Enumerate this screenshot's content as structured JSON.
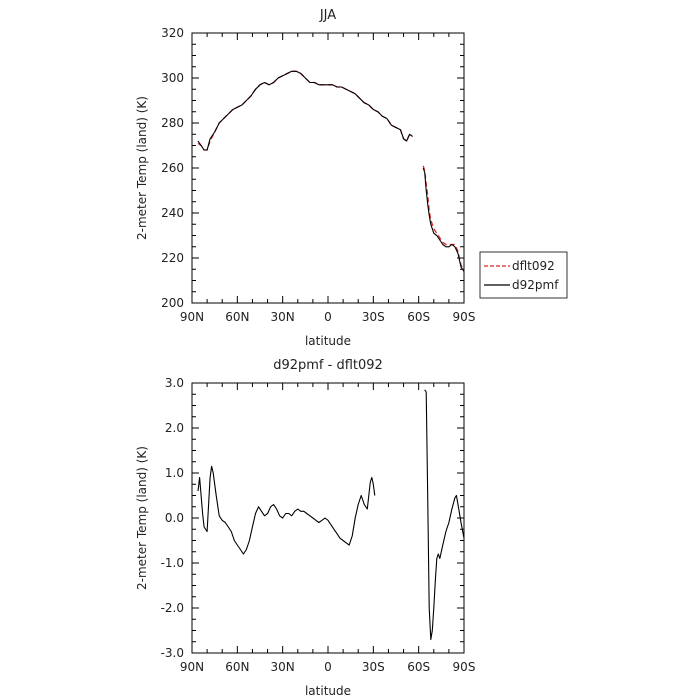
{
  "chart_data": [
    {
      "type": "line",
      "title": "JJA",
      "xlabel": "latitude",
      "ylabel": "2-meter Temp (land) (K)",
      "xlim": [
        -90,
        90
      ],
      "ylim": [
        200,
        320
      ],
      "x_ticks": [
        -90,
        -60,
        -30,
        0,
        30,
        60,
        90
      ],
      "x_tick_labels": [
        "90N",
        "60N",
        "30N",
        "0",
        "30S",
        "60S",
        "90S"
      ],
      "y_ticks": [
        200,
        220,
        240,
        260,
        280,
        300,
        320
      ],
      "y_tick_labels": [
        "200",
        "220",
        "240",
        "260",
        "280",
        "300",
        "320"
      ],
      "legend_position": "right",
      "series": [
        {
          "name": "dflt092",
          "color": "#d62728",
          "dash": "dashed",
          "segments": [
            [
              [
                -86,
                271
              ],
              [
                -84,
                270
              ],
              [
                -82,
                268
              ],
              [
                -80,
                268
              ],
              [
                -78,
                272
              ],
              [
                -75,
                276
              ],
              [
                -72,
                280
              ],
              [
                -69,
                282
              ],
              [
                -66,
                284
              ],
              [
                -63,
                286
              ],
              [
                -60,
                287
              ],
              [
                -57,
                288
              ],
              [
                -54,
                290
              ],
              [
                -51,
                292
              ],
              [
                -48,
                295
              ],
              [
                -45,
                297
              ],
              [
                -42,
                298
              ],
              [
                -39,
                297
              ],
              [
                -36,
                298
              ],
              [
                -33,
                300
              ],
              [
                -30,
                301
              ],
              [
                -27,
                302
              ],
              [
                -24,
                303
              ],
              [
                -21,
                303
              ],
              [
                -18,
                302
              ],
              [
                -15,
                300
              ],
              [
                -12,
                298
              ],
              [
                -9,
                298
              ],
              [
                -6,
                297
              ],
              [
                -3,
                297
              ],
              [
                0,
                297
              ],
              [
                3,
                297
              ],
              [
                6,
                296
              ],
              [
                9,
                296
              ],
              [
                12,
                295
              ],
              [
                15,
                294
              ],
              [
                18,
                293
              ],
              [
                21,
                291
              ],
              [
                24,
                289
              ],
              [
                27,
                288
              ],
              [
                30,
                286
              ],
              [
                33,
                285
              ],
              [
                36,
                283
              ],
              [
                39,
                282
              ],
              [
                42,
                279
              ],
              [
                45,
                278
              ],
              [
                48,
                277
              ],
              [
                50,
                273
              ],
              [
                52,
                272
              ],
              [
                54,
                275
              ],
              [
                56,
                275
              ]
            ],
            [
              [
                63,
                261
              ],
              [
                64,
                259
              ],
              [
                65,
                253
              ],
              [
                66,
                248
              ],
              [
                67,
                241
              ],
              [
                68,
                237
              ],
              [
                69,
                235
              ],
              [
                70,
                233
              ],
              [
                72,
                231
              ],
              [
                74,
                229
              ],
              [
                76,
                227
              ],
              [
                78,
                226
              ],
              [
                80,
                226
              ],
              [
                82,
                226
              ],
              [
                84,
                226
              ],
              [
                86,
                223
              ],
              [
                88,
                217
              ],
              [
                90,
                214
              ]
            ]
          ]
        },
        {
          "name": "d92pmf",
          "color": "#000000",
          "dash": "solid",
          "segments": [
            [
              [
                -86,
                272
              ],
              [
                -84,
                270
              ],
              [
                -82,
                268
              ],
              [
                -80,
                268
              ],
              [
                -78,
                273
              ],
              [
                -75,
                276
              ],
              [
                -72,
                280
              ],
              [
                -69,
                282
              ],
              [
                -66,
                284
              ],
              [
                -63,
                286
              ],
              [
                -60,
                287
              ],
              [
                -57,
                288
              ],
              [
                -54,
                290
              ],
              [
                -51,
                292
              ],
              [
                -48,
                295
              ],
              [
                -45,
                297
              ],
              [
                -42,
                298
              ],
              [
                -39,
                297
              ],
              [
                -36,
                298
              ],
              [
                -33,
                300
              ],
              [
                -30,
                301
              ],
              [
                -27,
                302
              ],
              [
                -24,
                303
              ],
              [
                -21,
                303
              ],
              [
                -18,
                302
              ],
              [
                -15,
                300
              ],
              [
                -12,
                298
              ],
              [
                -9,
                298
              ],
              [
                -6,
                297
              ],
              [
                -3,
                297
              ],
              [
                0,
                297
              ],
              [
                3,
                297
              ],
              [
                6,
                296
              ],
              [
                9,
                296
              ],
              [
                12,
                295
              ],
              [
                15,
                294
              ],
              [
                18,
                293
              ],
              [
                21,
                291
              ],
              [
                24,
                289
              ],
              [
                27,
                288
              ],
              [
                30,
                286
              ],
              [
                33,
                285
              ],
              [
                36,
                283
              ],
              [
                39,
                282
              ],
              [
                42,
                279
              ],
              [
                45,
                278
              ],
              [
                48,
                277
              ],
              [
                50,
                273
              ],
              [
                52,
                272
              ],
              [
                54,
                275
              ],
              [
                56,
                274
              ]
            ],
            [
              [
                63,
                260
              ],
              [
                64,
                258
              ],
              [
                65,
                250
              ],
              [
                66,
                244
              ],
              [
                67,
                239
              ],
              [
                68,
                235
              ],
              [
                69,
                233
              ],
              [
                70,
                231
              ],
              [
                72,
                230
              ],
              [
                74,
                228
              ],
              [
                76,
                226
              ],
              [
                78,
                225
              ],
              [
                80,
                225
              ],
              [
                82,
                226
              ],
              [
                84,
                225
              ],
              [
                86,
                222
              ],
              [
                88,
                216
              ],
              [
                90,
                214
              ]
            ]
          ]
        }
      ]
    },
    {
      "type": "line",
      "title": "d92pmf - dflt092",
      "xlabel": "latitude",
      "ylabel": "2-meter Temp (land) (K)",
      "xlim": [
        -90,
        90
      ],
      "ylim": [
        -3,
        3
      ],
      "x_ticks": [
        -90,
        -60,
        -30,
        0,
        30,
        60,
        90
      ],
      "x_tick_labels": [
        "90N",
        "60N",
        "30N",
        "0",
        "30S",
        "60S",
        "90S"
      ],
      "y_ticks": [
        -3,
        -2,
        -1,
        0,
        1,
        2,
        3
      ],
      "y_tick_labels": [
        "-3.0",
        "-2.0",
        "-1.0",
        "0.0",
        "1.0",
        "2.0",
        "3.0"
      ],
      "series": [
        {
          "name": "",
          "color": "#000000",
          "dash": "solid",
          "segments": [
            [
              [
                -86,
                0.6
              ],
              [
                -85,
                0.9
              ],
              [
                -84,
                0.5
              ],
              [
                -83,
                0.1
              ],
              [
                -82,
                -0.2
              ],
              [
                -80,
                -0.3
              ],
              [
                -79,
                0.3
              ],
              [
                -78,
                0.9
              ],
              [
                -77,
                1.15
              ],
              [
                -76,
                1.0
              ],
              [
                -74,
                0.5
              ],
              [
                -72,
                0.05
              ],
              [
                -70,
                -0.05
              ],
              [
                -68,
                -0.1
              ],
              [
                -66,
                -0.2
              ],
              [
                -64,
                -0.3
              ],
              [
                -62,
                -0.5
              ],
              [
                -60,
                -0.6
              ],
              [
                -58,
                -0.7
              ],
              [
                -56,
                -0.8
              ],
              [
                -54,
                -0.7
              ],
              [
                -52,
                -0.5
              ],
              [
                -50,
                -0.2
              ],
              [
                -48,
                0.1
              ],
              [
                -46,
                0.25
              ],
              [
                -44,
                0.15
              ],
              [
                -42,
                0.05
              ],
              [
                -40,
                0.1
              ],
              [
                -38,
                0.25
              ],
              [
                -36,
                0.3
              ],
              [
                -34,
                0.2
              ],
              [
                -32,
                0.05
              ],
              [
                -30,
                0.0
              ],
              [
                -28,
                0.1
              ],
              [
                -26,
                0.1
              ],
              [
                -24,
                0.05
              ],
              [
                -22,
                0.15
              ],
              [
                -20,
                0.2
              ],
              [
                -18,
                0.15
              ],
              [
                -16,
                0.15
              ],
              [
                -14,
                0.1
              ],
              [
                -12,
                0.05
              ],
              [
                -10,
                0.0
              ],
              [
                -8,
                -0.05
              ],
              [
                -6,
                -0.1
              ],
              [
                -4,
                -0.05
              ],
              [
                -2,
                0.0
              ],
              [
                0,
                -0.05
              ],
              [
                2,
                -0.15
              ],
              [
                4,
                -0.25
              ],
              [
                6,
                -0.35
              ],
              [
                8,
                -0.45
              ],
              [
                10,
                -0.5
              ],
              [
                12,
                -0.55
              ],
              [
                14,
                -0.6
              ],
              [
                16,
                -0.4
              ],
              [
                18,
                0.0
              ],
              [
                20,
                0.3
              ],
              [
                22,
                0.5
              ],
              [
                24,
                0.3
              ],
              [
                26,
                0.2
              ],
              [
                28,
                0.8
              ],
              [
                29,
                0.9
              ],
              [
                30,
                0.75
              ],
              [
                31,
                0.5
              ]
            ],
            [
              [
                64,
                2.85
              ],
              [
                65,
                2.8
              ],
              [
                66,
                0.5
              ],
              [
                67,
                -2.0
              ],
              [
                68,
                -2.7
              ],
              [
                69,
                -2.5
              ],
              [
                70,
                -2.0
              ],
              [
                71,
                -1.4
              ],
              [
                72,
                -0.9
              ],
              [
                73,
                -0.8
              ],
              [
                74,
                -0.9
              ],
              [
                76,
                -0.6
              ],
              [
                78,
                -0.3
              ],
              [
                80,
                -0.1
              ],
              [
                82,
                0.2
              ],
              [
                84,
                0.45
              ],
              [
                85,
                0.5
              ],
              [
                86,
                0.3
              ],
              [
                88,
                -0.1
              ],
              [
                90,
                -0.45
              ]
            ]
          ]
        }
      ]
    }
  ]
}
